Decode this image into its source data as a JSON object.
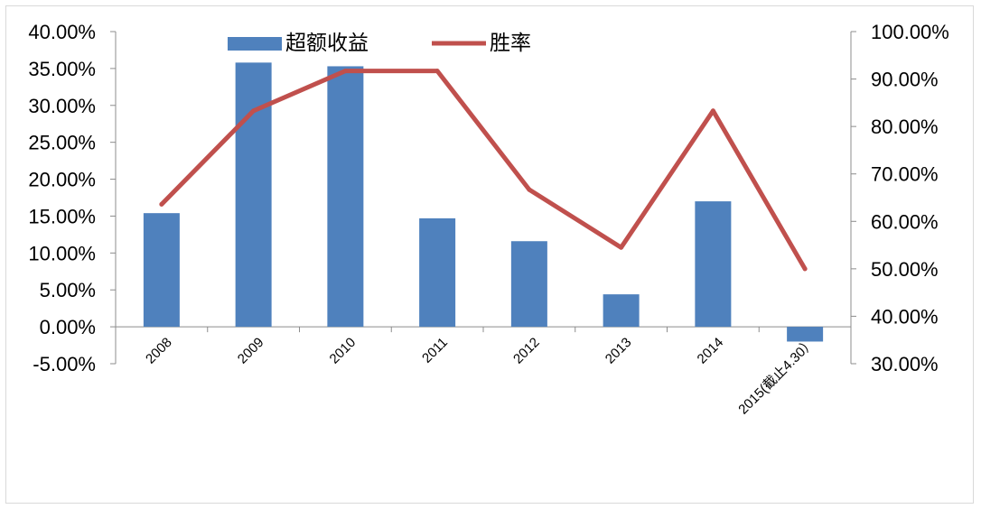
{
  "chart_data": {
    "type": "bar+line",
    "title": "",
    "categories": [
      "2008",
      "2009",
      "2010",
      "2011",
      "2012",
      "2013",
      "2014",
      "2015(截止4.30）"
    ],
    "series": [
      {
        "name": "超额收益",
        "type": "bar",
        "axis": "left",
        "color": "#4f81bd",
        "values": [
          15.4,
          35.8,
          35.3,
          14.7,
          11.6,
          4.4,
          17.0,
          -2.0
        ]
      },
      {
        "name": "胜率",
        "type": "line",
        "axis": "right",
        "color": "#c0504d",
        "values": [
          63.6,
          83.3,
          91.7,
          91.7,
          66.7,
          54.5,
          83.3,
          50.0
        ]
      }
    ],
    "y_left": {
      "min": -5,
      "max": 40,
      "step": 5,
      "tick_labels": [
        "-5.00%",
        "0.00%",
        "5.00%",
        "10.00%",
        "15.00%",
        "20.00%",
        "25.00%",
        "30.00%",
        "35.00%",
        "40.00%"
      ]
    },
    "y_right": {
      "min": 30,
      "max": 100,
      "step": 10,
      "tick_labels": [
        "30.00%",
        "40.00%",
        "50.00%",
        "60.00%",
        "70.00%",
        "80.00%",
        "90.00%",
        "100.00%"
      ]
    },
    "legend": {
      "position": "top-center",
      "items": [
        "超额收益",
        "胜率"
      ]
    },
    "grid": false
  }
}
